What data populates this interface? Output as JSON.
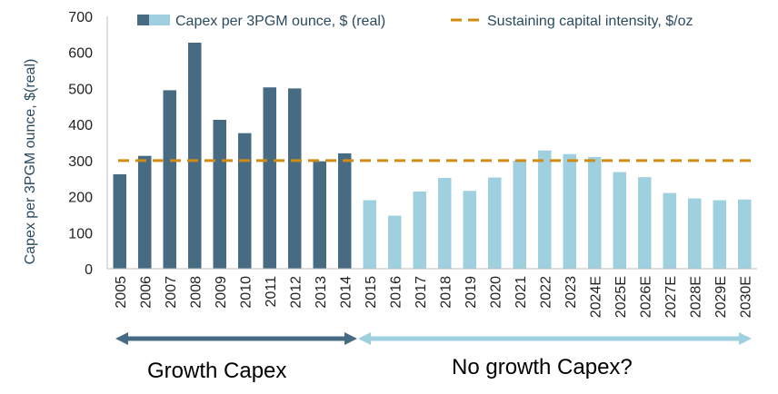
{
  "chart_data": {
    "type": "bar",
    "ylabel": "Capex per 3PGM ounce, $(real)",
    "ylim": [
      0,
      700
    ],
    "yticks": [
      0,
      100,
      200,
      300,
      400,
      500,
      600,
      700
    ],
    "categories": [
      "2005",
      "2006",
      "2007",
      "2008",
      "2009",
      "2010",
      "2011",
      "2012",
      "2013",
      "2014",
      "2015",
      "2016",
      "2017",
      "2018",
      "2019",
      "2020",
      "2021",
      "2022",
      "2023",
      "2024E",
      "2025E",
      "2026E",
      "2027E",
      "2028E",
      "2029E",
      "2030E"
    ],
    "series": [
      {
        "name": "Capex per 3PGM ounce, $ (real)",
        "values": [
          262,
          313,
          495,
          627,
          413,
          376,
          503,
          500,
          298,
          320,
          190,
          147,
          214,
          252,
          216,
          253,
          300,
          328,
          318,
          310,
          268,
          254,
          210,
          195,
          190,
          192
        ]
      }
    ],
    "bar_colors": {
      "growth": "#466b82",
      "no_growth": "#9ed0e0"
    },
    "growth_through_index": 9,
    "reference_line": {
      "name": "Sustaining capital intensity, $/oz",
      "value": 300,
      "color": "#d08c12",
      "style": "dashed"
    },
    "legend_position": "top",
    "grid": false
  },
  "annotations": {
    "growth_label": "Growth Capex",
    "growth_arrow_color": "#466b82",
    "no_growth_label": "No growth Capex?",
    "no_growth_arrow_color": "#9ed0e0"
  }
}
